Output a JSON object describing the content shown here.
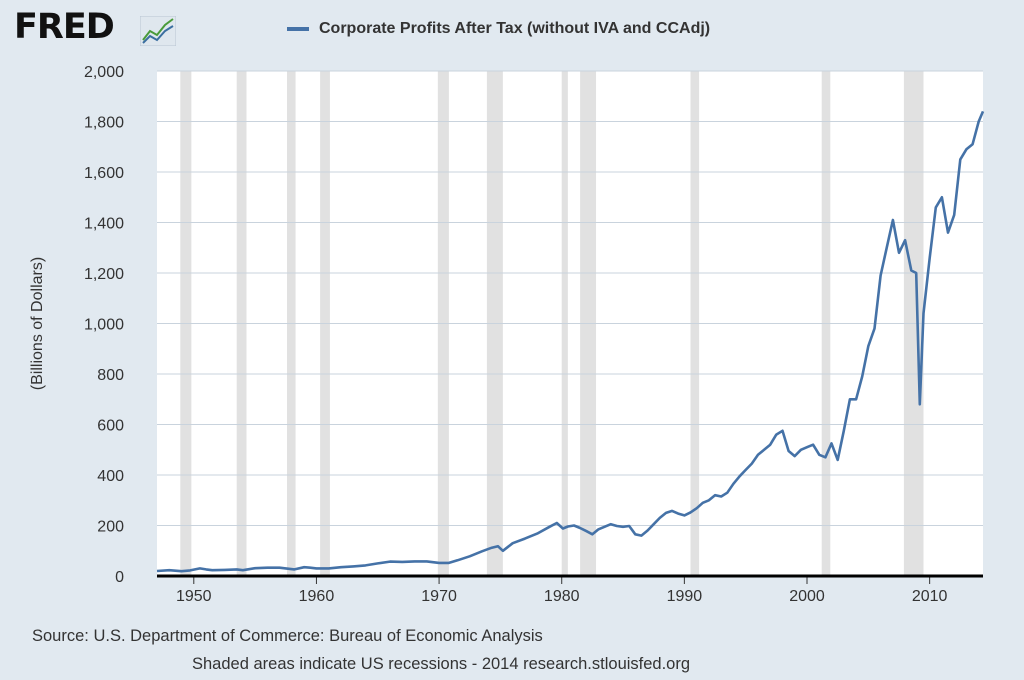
{
  "header": {
    "logo_text": "FRED"
  },
  "chart_data": {
    "type": "line",
    "title": "Corporate Profits After Tax (without IVA and CCAdj)",
    "ylabel": "(Billions of Dollars)",
    "xlabel": "",
    "xlim": [
      1947.0,
      2014.35
    ],
    "ylim": [
      0,
      2000
    ],
    "x_ticks": [
      1950,
      1960,
      1970,
      1980,
      1990,
      2000,
      2010
    ],
    "y_ticks": [
      0,
      200,
      400,
      600,
      800,
      1000,
      1200,
      1400,
      1600,
      1800,
      2000
    ],
    "y_tick_labels": [
      "0",
      "200",
      "400",
      "600",
      "800",
      "1,000",
      "1,200",
      "1,400",
      "1,600",
      "1,800",
      "2,000"
    ],
    "grid": true,
    "legend_position": "top",
    "line_color": "#4572a7",
    "recessions": [
      [
        1948.9,
        1949.8
      ],
      [
        1953.5,
        1954.3
      ],
      [
        1957.6,
        1958.3
      ],
      [
        1960.3,
        1961.1
      ],
      [
        1969.9,
        1970.8
      ],
      [
        1973.9,
        1975.2
      ],
      [
        1980.0,
        1980.5
      ],
      [
        1981.5,
        1982.8
      ],
      [
        1990.5,
        1991.2
      ],
      [
        2001.2,
        2001.9
      ],
      [
        2007.9,
        2009.5
      ]
    ],
    "series": [
      {
        "x": [
          1947.0,
          1948.0,
          1949.0,
          1949.7,
          1950.5,
          1951.0,
          1951.5,
          1952.5,
          1953.5,
          1954.0,
          1955.0,
          1956.0,
          1957.0,
          1957.5,
          1958.2,
          1959.0,
          1959.5,
          1960.0,
          1961.0,
          1962.0,
          1963.0,
          1964.0,
          1965.0,
          1966.0,
          1967.0,
          1968.0,
          1969.0,
          1970.0,
          1970.8,
          1971.5,
          1972.5,
          1973.5,
          1974.3,
          1974.8,
          1975.2,
          1976.0,
          1977.0,
          1978.0,
          1979.0,
          1979.6,
          1980.1,
          1980.5,
          1981.0,
          1981.5,
          1982.0,
          1982.5,
          1983.0,
          1984.0,
          1984.5,
          1985.0,
          1985.5,
          1986.0,
          1986.5,
          1987.0,
          1987.5,
          1988.0,
          1988.5,
          1989.0,
          1989.5,
          1990.0,
          1990.5,
          1991.0,
          1991.5,
          1992.0,
          1992.5,
          1993.0,
          1993.5,
          1994.0,
          1994.5,
          1995.0,
          1995.5,
          1996.0,
          1996.5,
          1997.0,
          1997.5,
          1998.0,
          1998.5,
          1999.0,
          1999.5,
          2000.0,
          2000.5,
          2001.0,
          2001.5,
          2002.0,
          2002.5,
          2003.0,
          2003.5,
          2004.0,
          2004.5,
          2005.0,
          2005.5,
          2006.0,
          2006.5,
          2007.0,
          2007.5,
          2008.0,
          2008.5,
          2008.9,
          2009.2,
          2009.5,
          2010.0,
          2010.5,
          2011.0,
          2011.5,
          2012.0,
          2012.5,
          2013.0,
          2013.5,
          2014.0,
          2014.35
        ],
        "y": [
          20,
          23,
          19,
          22,
          30,
          26,
          23,
          24,
          26,
          23,
          31,
          33,
          33,
          30,
          26,
          35,
          33,
          30,
          30,
          35,
          38,
          42,
          50,
          57,
          56,
          58,
          58,
          52,
          52,
          62,
          78,
          98,
          112,
          118,
          100,
          130,
          148,
          168,
          195,
          210,
          188,
          196,
          200,
          190,
          178,
          165,
          185,
          205,
          198,
          195,
          198,
          165,
          160,
          180,
          205,
          230,
          250,
          258,
          247,
          240,
          252,
          268,
          290,
          300,
          320,
          315,
          330,
          365,
          395,
          420,
          445,
          480,
          500,
          520,
          560,
          575,
          495,
          475,
          500,
          510,
          520,
          480,
          470,
          525,
          460,
          575,
          700,
          700,
          790,
          910,
          980,
          1190,
          1300,
          1410,
          1280,
          1330,
          1210,
          1200,
          680,
          1040,
          1260,
          1460,
          1500,
          1360,
          1430,
          1650,
          1690,
          1710,
          1800,
          1840
        ]
      }
    ]
  },
  "footer": {
    "source": "Source: U.S. Department of Commerce: Bureau of Economic Analysis",
    "note": "Shaded areas indicate US recessions - 2014 research.stlouisfed.org"
  }
}
